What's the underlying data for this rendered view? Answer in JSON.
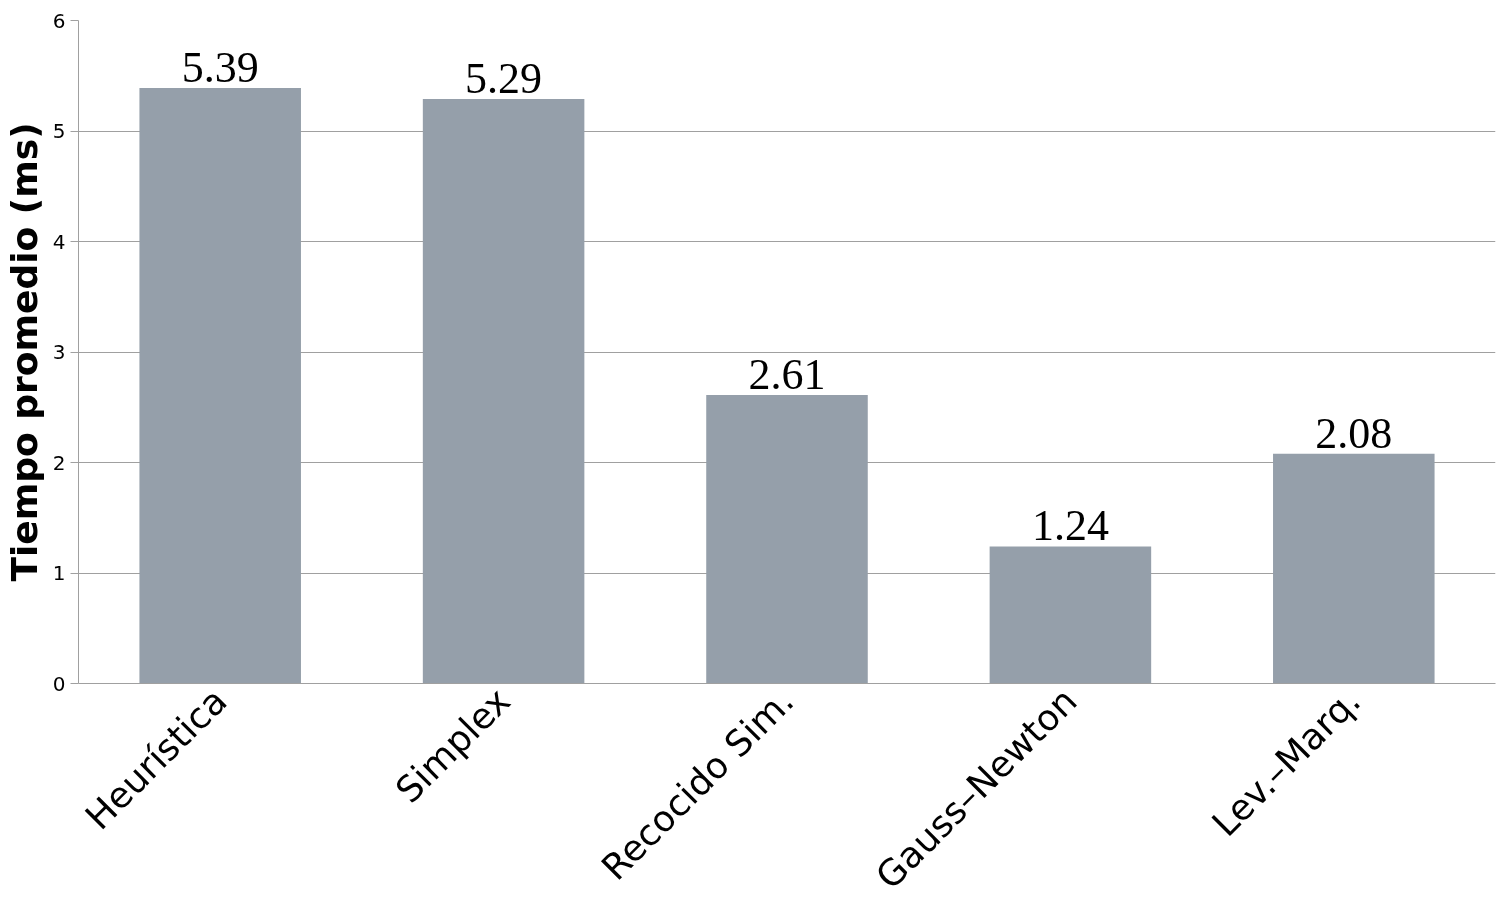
{
  "chart_data": {
    "type": "bar",
    "ylabel": "Tiempo promedio (ms)",
    "categories": [
      "Heurística",
      "Simplex",
      "Recocido Sim.",
      "Gauss–Newton",
      "Lev.–Marq."
    ],
    "values": [
      5.39,
      5.29,
      2.61,
      1.24,
      2.08
    ],
    "color": "#959faa",
    "ylim": [
      0,
      6
    ],
    "yticks": [
      0,
      1,
      2,
      3,
      4,
      5,
      6
    ],
    "grid": "y",
    "data_labels": true
  }
}
